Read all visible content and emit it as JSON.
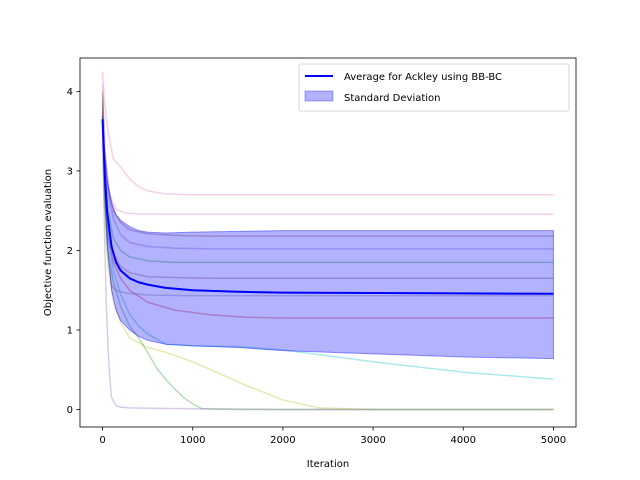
{
  "chart_data": {
    "type": "line",
    "title": "",
    "xlabel": "Iteration",
    "ylabel": "Objective function evaluation",
    "xlim": [
      -250,
      5250
    ],
    "ylim": [
      -0.22,
      4.42
    ],
    "xticks": [
      0,
      1000,
      2000,
      3000,
      4000,
      5000
    ],
    "yticks": [
      0,
      1,
      2,
      3,
      4
    ],
    "xtick_labels": [
      "0",
      "1000",
      "2000",
      "3000",
      "4000",
      "5000"
    ],
    "ytick_labels": [
      "0",
      "1",
      "2",
      "3",
      "4"
    ],
    "grid": false,
    "legend_position": "top-right",
    "legend": [
      {
        "label": "Average for Ackley using BB-BC",
        "kind": "line",
        "color": "#0000ff"
      },
      {
        "label": "Standard Deviation",
        "kind": "patch",
        "color": "#0000ff"
      }
    ],
    "average": {
      "name": "Average for Ackley using BB-BC",
      "color": "#0000ff",
      "x": [
        0,
        25,
        50,
        100,
        150,
        200,
        300,
        400,
        500,
        700,
        1000,
        1500,
        2000,
        3000,
        4000,
        5000
      ],
      "y": [
        3.65,
        2.95,
        2.5,
        2.05,
        1.85,
        1.75,
        1.65,
        1.6,
        1.57,
        1.53,
        1.5,
        1.48,
        1.47,
        1.465,
        1.46,
        1.455
      ]
    },
    "std_band": {
      "name": "Standard Deviation",
      "color": "#0000ff",
      "x": [
        0,
        25,
        50,
        100,
        150,
        200,
        300,
        400,
        500,
        700,
        1000,
        1500,
        2000,
        3000,
        4000,
        5000
      ],
      "upper": [
        3.7,
        3.2,
        2.9,
        2.6,
        2.45,
        2.38,
        2.3,
        2.25,
        2.23,
        2.22,
        2.23,
        2.24,
        2.25,
        2.25,
        2.25,
        2.25
      ],
      "lower": [
        3.6,
        2.7,
        2.1,
        1.5,
        1.25,
        1.12,
        1.0,
        0.92,
        0.87,
        0.82,
        0.8,
        0.78,
        0.74,
        0.7,
        0.66,
        0.64
      ]
    },
    "runs": [
      {
        "color": "#e377c2",
        "x": [
          0,
          20,
          60,
          120,
          200,
          300,
          400,
          500,
          700,
          1000,
          2000,
          3000,
          4000,
          5000
        ],
        "y": [
          4.25,
          3.9,
          3.5,
          3.15,
          3.05,
          2.9,
          2.8,
          2.75,
          2.71,
          2.7,
          2.7,
          2.7,
          2.7,
          2.7
        ]
      },
      {
        "color": "#e377c2",
        "x": [
          0,
          30,
          80,
          150,
          250,
          400,
          700,
          1000,
          2000,
          3000,
          5000
        ],
        "y": [
          4.1,
          3.2,
          2.7,
          2.52,
          2.47,
          2.46,
          2.455,
          2.455,
          2.455,
          2.455,
          2.455
        ]
      },
      {
        "color": "#8c564b",
        "x": [
          0,
          20,
          60,
          120,
          200,
          300,
          500,
          800,
          1200,
          2000,
          3000,
          5000
        ],
        "y": [
          4.0,
          3.3,
          2.8,
          2.5,
          2.35,
          2.26,
          2.21,
          2.19,
          2.18,
          2.18,
          2.18,
          2.18
        ]
      },
      {
        "color": "#9467bd",
        "x": [
          0,
          20,
          60,
          120,
          200,
          300,
          500,
          800,
          1200,
          2000,
          3000,
          5000
        ],
        "y": [
          3.95,
          3.3,
          2.75,
          2.4,
          2.2,
          2.1,
          2.05,
          2.03,
          2.02,
          2.02,
          2.02,
          2.02
        ]
      },
      {
        "color": "#2ca02c",
        "x": [
          0,
          20,
          60,
          120,
          200,
          300,
          500,
          800,
          1200,
          2000,
          3000,
          5000
        ],
        "y": [
          3.9,
          3.1,
          2.5,
          2.15,
          2.0,
          1.92,
          1.87,
          1.85,
          1.85,
          1.85,
          1.85,
          1.85
        ]
      },
      {
        "color": "#8c564b",
        "x": [
          0,
          20,
          60,
          120,
          200,
          300,
          500,
          800,
          1200,
          2000,
          3000,
          5000
        ],
        "y": [
          3.85,
          3.0,
          2.3,
          1.95,
          1.8,
          1.72,
          1.67,
          1.66,
          1.65,
          1.65,
          1.65,
          1.65
        ]
      },
      {
        "color": "#7f7f7f",
        "x": [
          0,
          20,
          60,
          100,
          150,
          200,
          300,
          500,
          1000,
          2000,
          5000
        ],
        "y": [
          3.8,
          2.8,
          1.9,
          1.55,
          1.5,
          1.48,
          1.46,
          1.44,
          1.43,
          1.43,
          1.43
        ]
      },
      {
        "color": "#d62728",
        "x": [
          0,
          20,
          60,
          120,
          200,
          300,
          500,
          800,
          1200,
          1600,
          2000,
          3000,
          5000
        ],
        "y": [
          3.75,
          2.9,
          2.2,
          1.85,
          1.65,
          1.5,
          1.35,
          1.25,
          1.19,
          1.16,
          1.15,
          1.15,
          1.15
        ]
      },
      {
        "color": "#17becf",
        "x": [
          0,
          20,
          60,
          120,
          200,
          300,
          400,
          500,
          700,
          1000,
          1500,
          2000,
          3000,
          4000,
          5000
        ],
        "y": [
          3.7,
          2.9,
          2.2,
          1.75,
          1.45,
          1.2,
          1.05,
          0.95,
          0.82,
          0.8,
          0.79,
          0.75,
          0.6,
          0.47,
          0.38
        ]
      },
      {
        "color": "#bcbd22",
        "x": [
          0,
          20,
          60,
          120,
          200,
          300,
          500,
          700,
          1000,
          1300,
          1600,
          2000,
          2400,
          3000,
          4000,
          5000
        ],
        "y": [
          3.6,
          2.6,
          1.8,
          1.35,
          1.1,
          0.9,
          0.78,
          0.72,
          0.6,
          0.45,
          0.3,
          0.12,
          0.02,
          0.0,
          0.0,
          0.0
        ]
      },
      {
        "color": "#2ca02c",
        "x": [
          0,
          20,
          60,
          120,
          200,
          300,
          400,
          500,
          600,
          700,
          800,
          900,
          1000,
          1100,
          1500,
          2000,
          3000,
          5000
        ],
        "y": [
          3.55,
          2.7,
          2.0,
          1.6,
          1.3,
          1.05,
          0.9,
          0.72,
          0.52,
          0.38,
          0.26,
          0.15,
          0.07,
          0.01,
          0.0,
          0.0,
          0.0,
          0.0
        ]
      },
      {
        "color": "#9467bd",
        "x": [
          0,
          20,
          40,
          60,
          80,
          100,
          150,
          200,
          300,
          500,
          1000,
          2000,
          5000
        ],
        "y": [
          3.5,
          2.3,
          1.4,
          0.8,
          0.4,
          0.15,
          0.05,
          0.03,
          0.02,
          0.015,
          0.01,
          0.0,
          0.0
        ]
      }
    ]
  }
}
